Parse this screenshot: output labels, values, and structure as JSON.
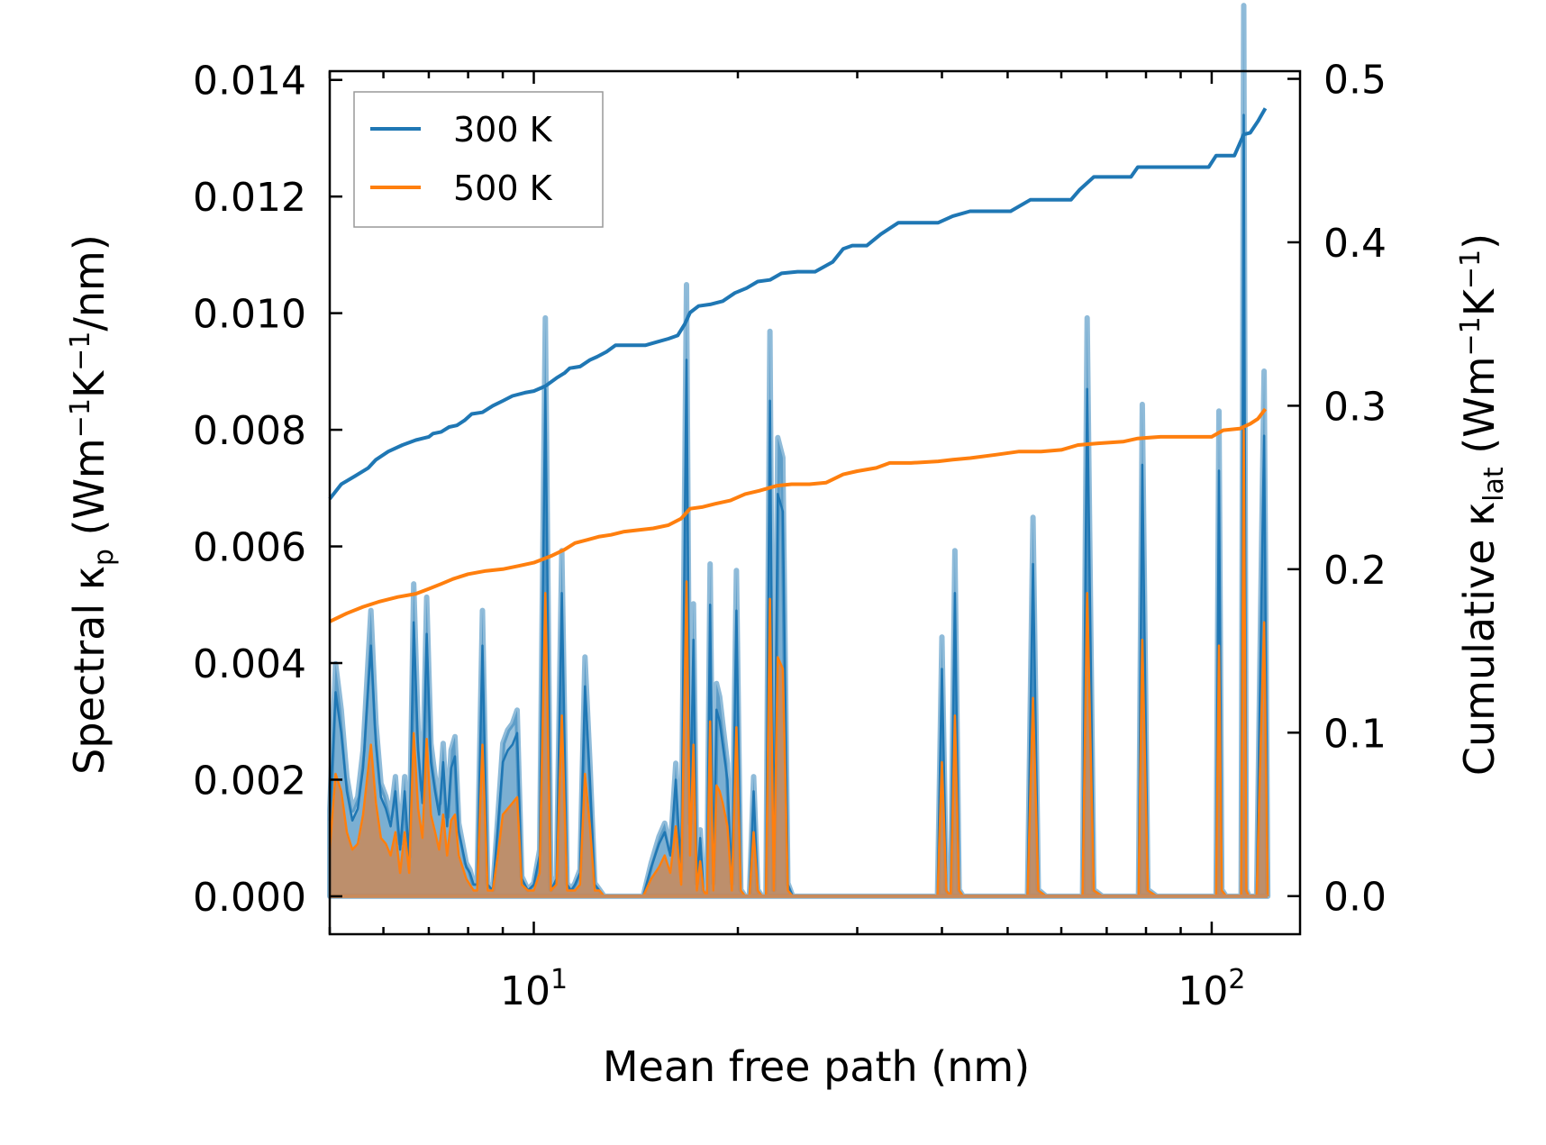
{
  "chart_data": {
    "type": "line",
    "xscale": "log",
    "xlim": [
      5,
      135
    ],
    "xlabel": "Mean free path (nm)",
    "xticks": [
      {
        "base": "10",
        "exp": "1",
        "value": 10
      },
      {
        "base": "10",
        "exp": "2",
        "value": 100
      }
    ],
    "ylabel_left": {
      "main": "Spectral κ",
      "sub": "p",
      "units_prefix": " (Wm",
      "sup1": "−1",
      "mid": "K",
      "sup2": "−1",
      "units_suffix": "/nm)"
    },
    "ylabel_right": {
      "main": "Cumulative κ",
      "sub": "lat",
      "units_prefix": " (Wm",
      "sup1": "−1",
      "mid": "K",
      "sup2": "−1",
      "units_suffix": ")"
    },
    "ylim_left": [
      -0.00065,
      0.01415
    ],
    "ylim_right": [
      -0.0233,
      0.5047
    ],
    "yticks_left": [
      "0.000",
      "0.002",
      "0.004",
      "0.006",
      "0.008",
      "0.010",
      "0.012",
      "0.014"
    ],
    "yticks_left_values": [
      0,
      0.002,
      0.004,
      0.006,
      0.008,
      0.01,
      0.012,
      0.014
    ],
    "yticks_right": [
      "0.0",
      "0.1",
      "0.2",
      "0.3",
      "0.4",
      "0.5"
    ],
    "yticks_right_values": [
      0,
      0.1,
      0.2,
      0.3,
      0.4,
      0.5
    ],
    "legend": {
      "position": "top-left",
      "entries": [
        "300 K",
        "500 K"
      ]
    },
    "colors": {
      "300K": "#1f77b4",
      "500K": "#ff7f0e"
    },
    "series": [
      {
        "name": "300 K",
        "axis": "right",
        "kind": "cumulative",
        "x": [
          5.0,
          5.2,
          5.45,
          5.7,
          5.85,
          6.1,
          6.4,
          6.7,
          6.85,
          7.0,
          7.1,
          7.3,
          7.5,
          7.7,
          7.9,
          8.1,
          8.4,
          8.7,
          9.0,
          9.3,
          9.7,
          10.0,
          10.4,
          10.8,
          11.1,
          11.3,
          11.7,
          12.1,
          12.4,
          12.8,
          13.2,
          13.6,
          14.0,
          14.6,
          15.2,
          15.8,
          16.3,
          16.7,
          17.0,
          17.5,
          18.2,
          19.0,
          19.8,
          20.6,
          21.4,
          22.3,
          23.2,
          24.5,
          26.0,
          27.6,
          28.6,
          29.5,
          31.0,
          32.5,
          34.5,
          37.0,
          39.5,
          41.5,
          44.0,
          47.0,
          50.5,
          54.0,
          58.0,
          62.0,
          63.8,
          67.0,
          72.0,
          76.0,
          77.8,
          82.0,
          88.0,
          94.0,
          99.0,
          101.5,
          104.0,
          108.0,
          111.5,
          114.0,
          117.0,
          120.0
        ],
        "y": [
          0.243,
          0.252,
          0.257,
          0.262,
          0.267,
          0.272,
          0.276,
          0.279,
          0.28,
          0.281,
          0.283,
          0.284,
          0.287,
          0.288,
          0.291,
          0.295,
          0.296,
          0.3,
          0.303,
          0.306,
          0.308,
          0.309,
          0.312,
          0.317,
          0.32,
          0.323,
          0.324,
          0.328,
          0.33,
          0.333,
          0.337,
          0.337,
          0.337,
          0.337,
          0.339,
          0.341,
          0.343,
          0.35,
          0.357,
          0.361,
          0.362,
          0.364,
          0.369,
          0.372,
          0.376,
          0.377,
          0.381,
          0.382,
          0.382,
          0.388,
          0.396,
          0.398,
          0.398,
          0.405,
          0.412,
          0.412,
          0.412,
          0.416,
          0.419,
          0.419,
          0.419,
          0.426,
          0.426,
          0.426,
          0.432,
          0.44,
          0.44,
          0.44,
          0.446,
          0.446,
          0.446,
          0.446,
          0.446,
          0.453,
          0.453,
          0.453,
          0.466,
          0.467,
          0.474,
          0.482
        ]
      },
      {
        "name": "500 K",
        "axis": "right",
        "kind": "cumulative",
        "x": [
          5.0,
          5.3,
          5.6,
          5.9,
          6.3,
          6.7,
          7.0,
          7.3,
          7.6,
          8.0,
          8.5,
          9.0,
          9.5,
          10.0,
          10.6,
          11.1,
          11.5,
          12.0,
          12.5,
          13.0,
          13.6,
          14.3,
          15.0,
          15.8,
          16.5,
          17.0,
          17.7,
          18.5,
          19.5,
          20.5,
          21.5,
          22.8,
          24.0,
          25.5,
          27.0,
          28.6,
          30.0,
          32.0,
          33.5,
          36.0,
          39.5,
          41.5,
          44.0,
          48.0,
          52.0,
          56.0,
          60.0,
          63.5,
          68.0,
          74.0,
          77.8,
          84.0,
          92.0,
          100.0,
          104.0,
          110.0,
          114.0,
          117.0,
          120.0
        ],
        "y": [
          0.168,
          0.173,
          0.177,
          0.18,
          0.183,
          0.185,
          0.188,
          0.191,
          0.194,
          0.197,
          0.199,
          0.2,
          0.202,
          0.204,
          0.208,
          0.212,
          0.216,
          0.218,
          0.22,
          0.221,
          0.223,
          0.224,
          0.225,
          0.227,
          0.231,
          0.237,
          0.238,
          0.24,
          0.242,
          0.246,
          0.248,
          0.251,
          0.252,
          0.252,
          0.253,
          0.258,
          0.26,
          0.262,
          0.265,
          0.265,
          0.266,
          0.267,
          0.268,
          0.27,
          0.272,
          0.272,
          0.273,
          0.276,
          0.277,
          0.278,
          0.28,
          0.281,
          0.281,
          0.281,
          0.285,
          0.286,
          0.289,
          0.292,
          0.298
        ]
      },
      {
        "name": "300 K spectral",
        "axis": "left",
        "kind": "spectral",
        "x": [
          5.0,
          5.1,
          5.2,
          5.3,
          5.4,
          5.5,
          5.6,
          5.75,
          5.85,
          5.95,
          6.05,
          6.15,
          6.25,
          6.35,
          6.45,
          6.55,
          6.65,
          6.75,
          6.85,
          6.95,
          7.05,
          7.15,
          7.25,
          7.35,
          7.45,
          7.55,
          7.65,
          7.75,
          7.85,
          7.95,
          8.05,
          8.15,
          8.25,
          8.4,
          8.55,
          8.7,
          8.85,
          9.0,
          9.15,
          9.3,
          9.45,
          9.6,
          9.8,
          10.0,
          10.2,
          10.4,
          10.6,
          10.8,
          11.0,
          11.2,
          11.35,
          11.5,
          11.7,
          11.9,
          12.1,
          12.3,
          12.5,
          12.7,
          12.9,
          13.1,
          13.3,
          13.5,
          13.8,
          14.1,
          14.5,
          14.9,
          15.3,
          15.6,
          15.9,
          16.2,
          16.5,
          16.8,
          17.0,
          17.2,
          17.4,
          17.6,
          17.8,
          18.0,
          18.2,
          18.4,
          18.6,
          18.8,
          19.0,
          19.3,
          19.6,
          19.9,
          20.2,
          20.5,
          20.8,
          21.1,
          21.4,
          21.7,
          22.0,
          22.3,
          22.6,
          22.9,
          23.3,
          23.7,
          24.1,
          24.5,
          25.0,
          25.5,
          26.0,
          26.6,
          27.2,
          27.8,
          28.2,
          28.6,
          29.0,
          29.4,
          29.8,
          30.2,
          30.6,
          31.0,
          31.4,
          31.8,
          32.2,
          32.6,
          33.0,
          33.4,
          34.0,
          34.8,
          35.6,
          36.4,
          37.2,
          38.0,
          38.8,
          39.4,
          40.0,
          40.6,
          41.2,
          41.8,
          42.4,
          43.0,
          44.0,
          45.5,
          47.0,
          48.5,
          50.0,
          51.5,
          52.5,
          53.5,
          54.5,
          55.5,
          57.0,
          59.0,
          61.0,
          62.5,
          63.5,
          64.5,
          65.5,
          67.0,
          69.0,
          71.5,
          74.0,
          76.0,
          77.0,
          78.0,
          79.0,
          80.5,
          83.0,
          87.0,
          91.0,
          95.0,
          98.0,
          100.0,
          101.5,
          102.5,
          103.5,
          105.0,
          107.0,
          109.0,
          110.5,
          111.5,
          112.5,
          113.5,
          115.0,
          116.5,
          118.0,
          119.5,
          121.0
        ],
        "y": [
          0.0013,
          0.0035,
          0.0028,
          0.0018,
          0.0013,
          0.0015,
          0.0022,
          0.0043,
          0.0026,
          0.0017,
          0.0015,
          0.0012,
          0.0018,
          0.0008,
          0.0018,
          0.0006,
          0.0047,
          0.0025,
          0.0016,
          0.0045,
          0.0023,
          0.0018,
          0.0014,
          0.0023,
          0.0012,
          0.0022,
          0.0024,
          0.0011,
          0.0008,
          0.0005,
          0.0004,
          0.0002,
          0.0002,
          0.0043,
          0.0002,
          0.0001,
          0.0012,
          0.0023,
          0.0025,
          0.0026,
          0.0028,
          0.0003,
          0.0001,
          0.0002,
          0.0007,
          0.0087,
          0.0001,
          0.0003,
          0.0052,
          0.0002,
          0.0001,
          0.0002,
          0.0004,
          0.0036,
          0.002,
          0.0002,
          0.0001,
          0.0,
          0.0,
          0.0,
          0.0,
          0.0,
          0.0,
          0.0,
          0.0,
          0.0005,
          0.0009,
          0.0011,
          0.0007,
          0.002,
          0.0004,
          0.0092,
          0.0011,
          0.0044,
          0.0002,
          0.001,
          0.0001,
          0.0,
          0.005,
          0.0002,
          0.0032,
          0.003,
          0.0026,
          0.002,
          0.0002,
          0.0049,
          0.0001,
          0.0,
          0.0,
          0.0018,
          0.0001,
          0.0,
          0.0,
          0.0085,
          0.0001,
          0.0069,
          0.0066,
          0.0002,
          0.0,
          0.0,
          0.0,
          0.0,
          0.0,
          0.0,
          0.0,
          0.0,
          0.0,
          0.0,
          0.0,
          0.0,
          0.0,
          0.0,
          0.0,
          0.0,
          0.0,
          0.0,
          0.0,
          0.0,
          0.0,
          0.0,
          0.0,
          0.0,
          0.0,
          0.0,
          0.0,
          0.0,
          0.0,
          0.0,
          0.0039,
          0.0001,
          0.0,
          0.0052,
          0.0001,
          0.0,
          0.0,
          0.0,
          0.0,
          0.0,
          0.0,
          0.0,
          0.0,
          0.0,
          0.0057,
          0.0001,
          0.0,
          0.0,
          0.0,
          0.0,
          0.0,
          0.0,
          0.0087,
          0.0001,
          0.0,
          0.0,
          0.0,
          0.0,
          0.0,
          0.0,
          0.0074,
          0.0001,
          0.0,
          0.0,
          0.0,
          0.0,
          0.0,
          0.0,
          0.0,
          0.0073,
          0.0001,
          0.0,
          0.0,
          0.0,
          0.0,
          0.0134,
          0.0001,
          0.0,
          0.0,
          0.0,
          0.004,
          0.0079,
          0.0
        ],
        "fill_spread": 0.14
      },
      {
        "name": "500 K spectral",
        "axis": "left",
        "kind": "spectral",
        "x": [
          5.0,
          5.1,
          5.2,
          5.3,
          5.4,
          5.5,
          5.6,
          5.75,
          5.85,
          5.95,
          6.05,
          6.15,
          6.25,
          6.35,
          6.45,
          6.55,
          6.65,
          6.75,
          6.85,
          6.95,
          7.05,
          7.15,
          7.25,
          7.35,
          7.45,
          7.55,
          7.65,
          7.75,
          7.85,
          7.95,
          8.05,
          8.15,
          8.25,
          8.4,
          8.55,
          8.7,
          8.85,
          9.0,
          9.15,
          9.3,
          9.45,
          9.6,
          9.8,
          10.0,
          10.2,
          10.4,
          10.6,
          10.8,
          11.0,
          11.2,
          11.35,
          11.5,
          11.7,
          11.9,
          12.1,
          12.3,
          12.5,
          12.7,
          12.9,
          13.1,
          13.3,
          13.5,
          13.8,
          14.1,
          14.5,
          14.9,
          15.3,
          15.6,
          15.9,
          16.2,
          16.5,
          16.8,
          17.0,
          17.2,
          17.4,
          17.6,
          17.8,
          18.0,
          18.2,
          18.4,
          18.6,
          18.8,
          19.0,
          19.3,
          19.6,
          19.9,
          20.2,
          20.5,
          20.8,
          21.1,
          21.4,
          21.7,
          22.0,
          22.3,
          22.6,
          22.9,
          23.3,
          23.7,
          24.1,
          24.5,
          25.0,
          25.5,
          26.0,
          26.6,
          27.2,
          27.8,
          28.2,
          28.6,
          29.0,
          29.4,
          29.8,
          30.2,
          30.6,
          31.0,
          31.4,
          31.8,
          32.2,
          32.6,
          33.0,
          33.4,
          34.0,
          34.8,
          35.6,
          36.4,
          37.2,
          38.0,
          38.8,
          39.4,
          40.0,
          40.6,
          41.2,
          41.8,
          42.4,
          43.0,
          44.0,
          45.5,
          47.0,
          48.5,
          50.0,
          51.5,
          52.5,
          53.5,
          54.5,
          55.5,
          57.0,
          59.0,
          61.0,
          62.5,
          63.5,
          64.5,
          65.5,
          67.0,
          69.0,
          71.5,
          74.0,
          76.0,
          77.0,
          78.0,
          79.0,
          80.5,
          83.0,
          87.0,
          91.0,
          95.0,
          98.0,
          100.0,
          101.5,
          102.5,
          103.5,
          105.0,
          107.0,
          109.0,
          110.5,
          111.5,
          112.5,
          113.5,
          115.0,
          116.5,
          118.0,
          119.5,
          121.0
        ],
        "y": [
          0.0008,
          0.0021,
          0.0018,
          0.0011,
          0.0008,
          0.0009,
          0.0014,
          0.0026,
          0.0016,
          0.001,
          0.0009,
          0.0007,
          0.0011,
          0.0004,
          0.0011,
          0.0004,
          0.0028,
          0.0015,
          0.001,
          0.0027,
          0.0014,
          0.0011,
          0.0008,
          0.0014,
          0.0007,
          0.0013,
          0.0014,
          0.0007,
          0.0005,
          0.0003,
          0.0002,
          0.0001,
          0.0001,
          0.0026,
          0.0001,
          0.0001,
          0.0007,
          0.0014,
          0.0015,
          0.0016,
          0.0017,
          0.0002,
          0.0001,
          0.0001,
          0.0004,
          0.0052,
          0.0001,
          0.0002,
          0.0031,
          0.0001,
          0.0001,
          0.0001,
          0.0002,
          0.0021,
          0.0012,
          0.0001,
          0.0001,
          0.0,
          0.0,
          0.0,
          0.0,
          0.0,
          0.0,
          0.0,
          0.0,
          0.0003,
          0.0005,
          0.0007,
          0.0004,
          0.0012,
          0.0002,
          0.0054,
          0.0007,
          0.0026,
          0.0001,
          0.0006,
          0.0001,
          0.0,
          0.003,
          0.0001,
          0.0019,
          0.0018,
          0.0016,
          0.0012,
          0.0001,
          0.0029,
          0.0001,
          0.0,
          0.0,
          0.0011,
          0.0001,
          0.0,
          0.0,
          0.0051,
          0.0001,
          0.0041,
          0.0039,
          0.0001,
          0.0,
          0.0,
          0.0,
          0.0,
          0.0,
          0.0,
          0.0,
          0.0,
          0.0,
          0.0,
          0.0,
          0.0,
          0.0,
          0.0,
          0.0,
          0.0,
          0.0,
          0.0,
          0.0,
          0.0,
          0.0,
          0.0,
          0.0,
          0.0,
          0.0,
          0.0,
          0.0,
          0.0,
          0.0,
          0.0,
          0.0023,
          0.0001,
          0.0,
          0.0031,
          0.0001,
          0.0,
          0.0,
          0.0,
          0.0,
          0.0,
          0.0,
          0.0,
          0.0,
          0.0,
          0.0034,
          0.0001,
          0.0,
          0.0,
          0.0,
          0.0,
          0.0,
          0.0,
          0.0052,
          0.0001,
          0.0,
          0.0,
          0.0,
          0.0,
          0.0,
          0.0,
          0.0044,
          0.0001,
          0.0,
          0.0,
          0.0,
          0.0,
          0.0,
          0.0,
          0.0,
          0.0043,
          0.0001,
          0.0,
          0.0,
          0.0,
          0.0,
          0.008,
          0.0001,
          0.0,
          0.0,
          0.0,
          0.0024,
          0.0047,
          0.0
        ]
      }
    ]
  }
}
